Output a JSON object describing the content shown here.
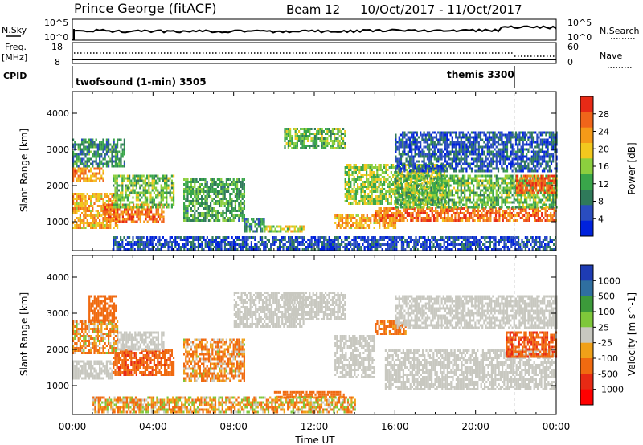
{
  "header": {
    "station": "Prince George (fitACF)",
    "beam": "Beam 12",
    "dates": "10/Oct/2017 - 11/Oct/2017"
  },
  "noise_panel": {
    "left_label": "N.Sky",
    "right_label": "N.Search",
    "left_ticks": [
      "10^5",
      "10^0"
    ],
    "right_ticks": [
      "10^5",
      "10^0"
    ]
  },
  "freq_panel": {
    "left_label_1": "Freq.",
    "left_label_2": "[MHz]",
    "left_ticks": [
      "18",
      "8"
    ],
    "right_label": "Nave",
    "right_ticks": [
      "60",
      "0"
    ]
  },
  "cpid_panel": {
    "label": "CPID",
    "modes": [
      {
        "name": "twofsound (1-min) 3505",
        "start_hour": 0,
        "end_hour": 21.85
      },
      {
        "name": "themis 3300",
        "start_hour": 21.85,
        "end_hour": 24
      }
    ]
  },
  "x_axis": {
    "label": "Time UT",
    "tick_labels": [
      "00:00",
      "04:00",
      "08:00",
      "12:00",
      "16:00",
      "20:00",
      "00:00"
    ]
  },
  "power_colorbar": {
    "title": "Power [dB]",
    "tick_labels": [
      "28",
      "24",
      "20",
      "16",
      "12",
      "8",
      "4"
    ],
    "colors": [
      "#0022dd",
      "#2a4dc0",
      "#2f7a5a",
      "#39a64a",
      "#8ccf3e",
      "#f2c81e",
      "#f59a18",
      "#f0651a",
      "#e82a16"
    ]
  },
  "velocity_colorbar": {
    "title": "Velocity [m s^-1]",
    "tick_labels": [
      "1000",
      "500",
      "100",
      "25",
      "-25",
      "-100",
      "-500",
      "-1000"
    ],
    "colors": [
      "#1e3cb4",
      "#2f6fa0",
      "#3c9a3a",
      "#7ec83a",
      "#c8c8c0",
      "#f0a018",
      "#f06a10",
      "#e82a14",
      "#ff0000"
    ]
  },
  "chart_data": [
    {
      "type": "heatmap",
      "panel": "power",
      "xlabel": "Time UT",
      "ylabel": "Slant Range [km]",
      "xlim": [
        0,
        24
      ],
      "ylim": [
        200,
        4600
      ],
      "y_tick_labels": [
        "1000",
        "2000",
        "3000",
        "4000"
      ],
      "colorbar": "Power [dB]",
      "regions": [
        {
          "x": [
            0,
            2.2
          ],
          "y": [
            800,
            1800
          ],
          "value": 22
        },
        {
          "x": [
            0,
            1.5
          ],
          "y": [
            2100,
            2500
          ],
          "value": 24
        },
        {
          "x": [
            0,
            2.6
          ],
          "y": [
            2500,
            3300
          ],
          "value": 10
        },
        {
          "x": [
            1.5,
            4.5
          ],
          "y": [
            1000,
            1500
          ],
          "value": 26
        },
        {
          "x": [
            2.0,
            5.0
          ],
          "y": [
            1400,
            2300
          ],
          "value": 14
        },
        {
          "x": [
            5.5,
            8.5
          ],
          "y": [
            1000,
            2200
          ],
          "value": 12
        },
        {
          "x": [
            8.5,
            9.5
          ],
          "y": [
            700,
            1100
          ],
          "value": 10
        },
        {
          "x": [
            9.5,
            11.5
          ],
          "y": [
            700,
            900
          ],
          "value": 18
        },
        {
          "x": [
            10.5,
            13.5
          ],
          "y": [
            3000,
            3600
          ],
          "value": 14
        },
        {
          "x": [
            13.0,
            16.0
          ],
          "y": [
            800,
            1200
          ],
          "value": 22
        },
        {
          "x": [
            13.5,
            18.5
          ],
          "y": [
            1500,
            2600
          ],
          "value": 16
        },
        {
          "x": [
            15.0,
            24.0
          ],
          "y": [
            1000,
            1400
          ],
          "value": 26
        },
        {
          "x": [
            16.0,
            24.0
          ],
          "y": [
            1400,
            2300
          ],
          "value": 14
        },
        {
          "x": [
            22.0,
            24.0
          ],
          "y": [
            1800,
            2300
          ],
          "value": 27
        },
        {
          "x": [
            16.0,
            24.0
          ],
          "y": [
            2400,
            3500
          ],
          "value": 6
        },
        {
          "x": [
            2.0,
            24.0
          ],
          "y": [
            250,
            600
          ],
          "value": 5
        }
      ]
    },
    {
      "type": "heatmap",
      "panel": "velocity",
      "xlabel": "Time UT",
      "ylabel": "Slant Range [km]",
      "xlim": [
        0,
        24
      ],
      "ylim": [
        200,
        4600
      ],
      "y_tick_labels": [
        "1000",
        "2000",
        "3000",
        "4000"
      ],
      "colorbar": "Velocity [m s^-1]",
      "regions": [
        {
          "x": [
            0,
            2.0
          ],
          "y": [
            1200,
            1700
          ],
          "value": 0
        },
        {
          "x": [
            0,
            2.2
          ],
          "y": [
            1900,
            2800
          ],
          "value": -100
        },
        {
          "x": [
            0.8,
            2.2
          ],
          "y": [
            2800,
            3500
          ],
          "value": -300
        },
        {
          "x": [
            2.0,
            5.0
          ],
          "y": [
            1300,
            2000
          ],
          "value": -400
        },
        {
          "x": [
            2.2,
            4.5
          ],
          "y": [
            2000,
            2500
          ],
          "value": 0
        },
        {
          "x": [
            5.5,
            8.5
          ],
          "y": [
            1100,
            2300
          ],
          "value": -120
        },
        {
          "x": [
            8.0,
            11.5
          ],
          "y": [
            2600,
            3600
          ],
          "value": 0
        },
        {
          "x": [
            10.5,
            13.5
          ],
          "y": [
            2800,
            3600
          ],
          "value": 0
        },
        {
          "x": [
            13.0,
            15.0
          ],
          "y": [
            1200,
            2400
          ],
          "value": 0
        },
        {
          "x": [
            10.0,
            13.5
          ],
          "y": [
            700,
            850
          ],
          "value": -300
        },
        {
          "x": [
            15.0,
            16.5
          ],
          "y": [
            2400,
            2800
          ],
          "value": -200
        },
        {
          "x": [
            15.5,
            24.0
          ],
          "y": [
            900,
            2000
          ],
          "value": 0
        },
        {
          "x": [
            21.5,
            24.0
          ],
          "y": [
            1800,
            2500
          ],
          "value": -450
        },
        {
          "x": [
            16.0,
            24.0
          ],
          "y": [
            2600,
            3500
          ],
          "value": 0
        },
        {
          "x": [
            1.0,
            14.0
          ],
          "y": [
            250,
            700
          ],
          "value": -60
        }
      ]
    }
  ]
}
